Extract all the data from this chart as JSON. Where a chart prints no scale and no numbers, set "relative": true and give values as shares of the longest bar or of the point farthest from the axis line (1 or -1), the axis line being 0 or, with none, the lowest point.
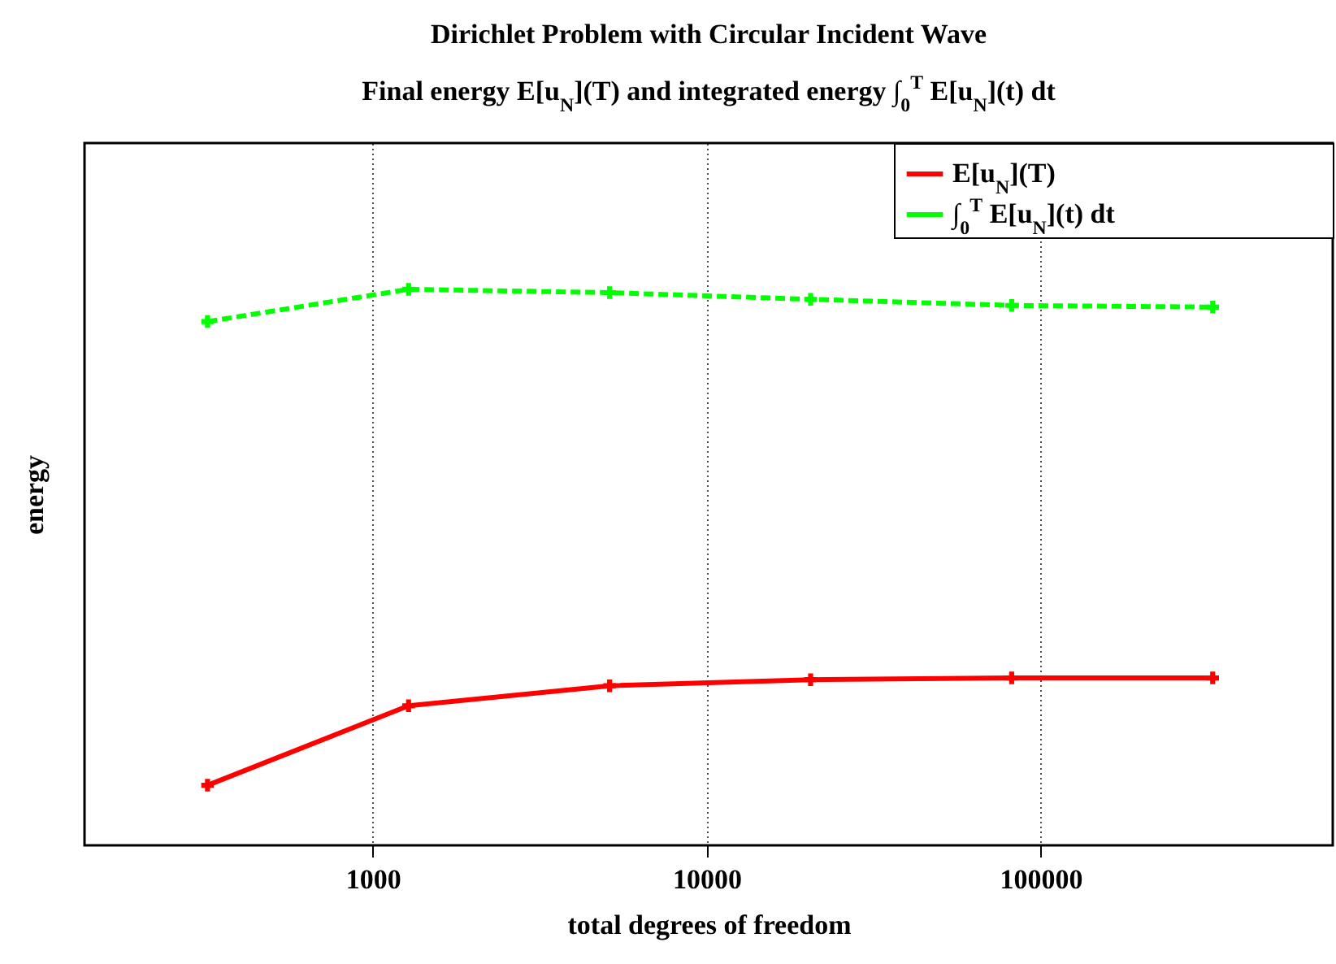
{
  "chart_data": {
    "type": "line",
    "title": "Dirichlet Problem with Circular Incident Wave",
    "subtitle": "Final energy E[u$_{N}$](T) and integrated energy ∫$_{0}$$^{T}$ E[u$_{N}$](t) dt",
    "xlabel": "total degrees of freedom",
    "ylabel": "energy",
    "log": "x",
    "xlim": [
      137,
      750000
    ],
    "xticks": [
      1000,
      10000,
      100000
    ],
    "grid": "x",
    "legend": "top right",
    "relative": true,
    "marker": "cross",
    "x": [
      320,
      1280,
      5120,
      20480,
      81920,
      327680
    ],
    "series": [
      {
        "name": "E[u$_{N}$](T)",
        "color": "#ff0000",
        "line_style": "solid",
        "values": [
          0.108,
          0.251,
          0.287,
          0.298,
          0.301,
          0.301
        ]
      },
      {
        "name": "∫$_{0}$$^{T}$ E[u$_{N}$](t) dt",
        "color": "#00ff00",
        "line_style": "dashed",
        "values": [
          0.942,
          1,
          0.994,
          0.982,
          0.971,
          0.968
        ]
      }
    ]
  }
}
